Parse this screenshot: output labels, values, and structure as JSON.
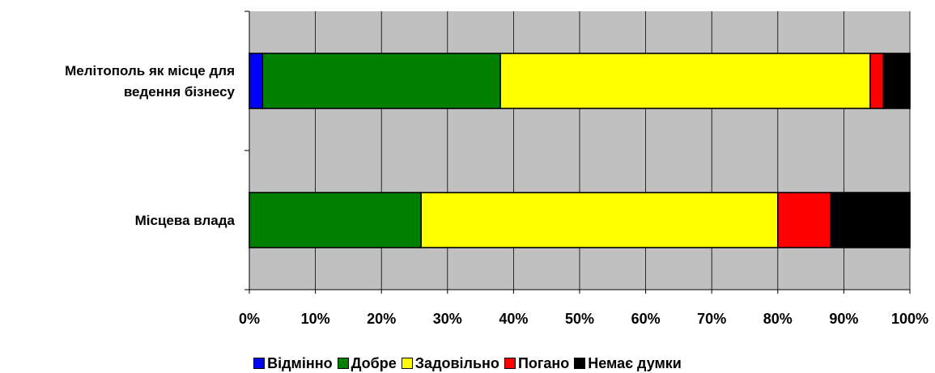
{
  "chart_data": {
    "type": "bar",
    "orientation": "horizontal",
    "stacked": "percent",
    "categories": [
      "Мелітополь як місце для ведення бізнесу",
      "Місцева влада"
    ],
    "category_lines": [
      [
        "Мелітополь як місце для",
        "ведення бізнесу"
      ],
      [
        "Місцева влада"
      ]
    ],
    "series": [
      {
        "name": "Відмінно",
        "color": "#0000FF",
        "values": [
          2,
          0
        ]
      },
      {
        "name": "Добре",
        "color": "#008000",
        "values": [
          36,
          26
        ]
      },
      {
        "name": "Задовільно",
        "color": "#FFFF00",
        "values": [
          56,
          54
        ]
      },
      {
        "name": "Погано",
        "color": "#FF0000",
        "values": [
          2,
          8
        ]
      },
      {
        "name": "Немає думки",
        "color": "#000000",
        "values": [
          4,
          12
        ]
      }
    ],
    "xlim": [
      0,
      100
    ],
    "xticks": [
      "0%",
      "10%",
      "20%",
      "30%",
      "40%",
      "50%",
      "60%",
      "70%",
      "80%",
      "90%",
      "100%"
    ],
    "grid": true,
    "plot_background": "#C0C0C0",
    "legend_position": "bottom"
  }
}
